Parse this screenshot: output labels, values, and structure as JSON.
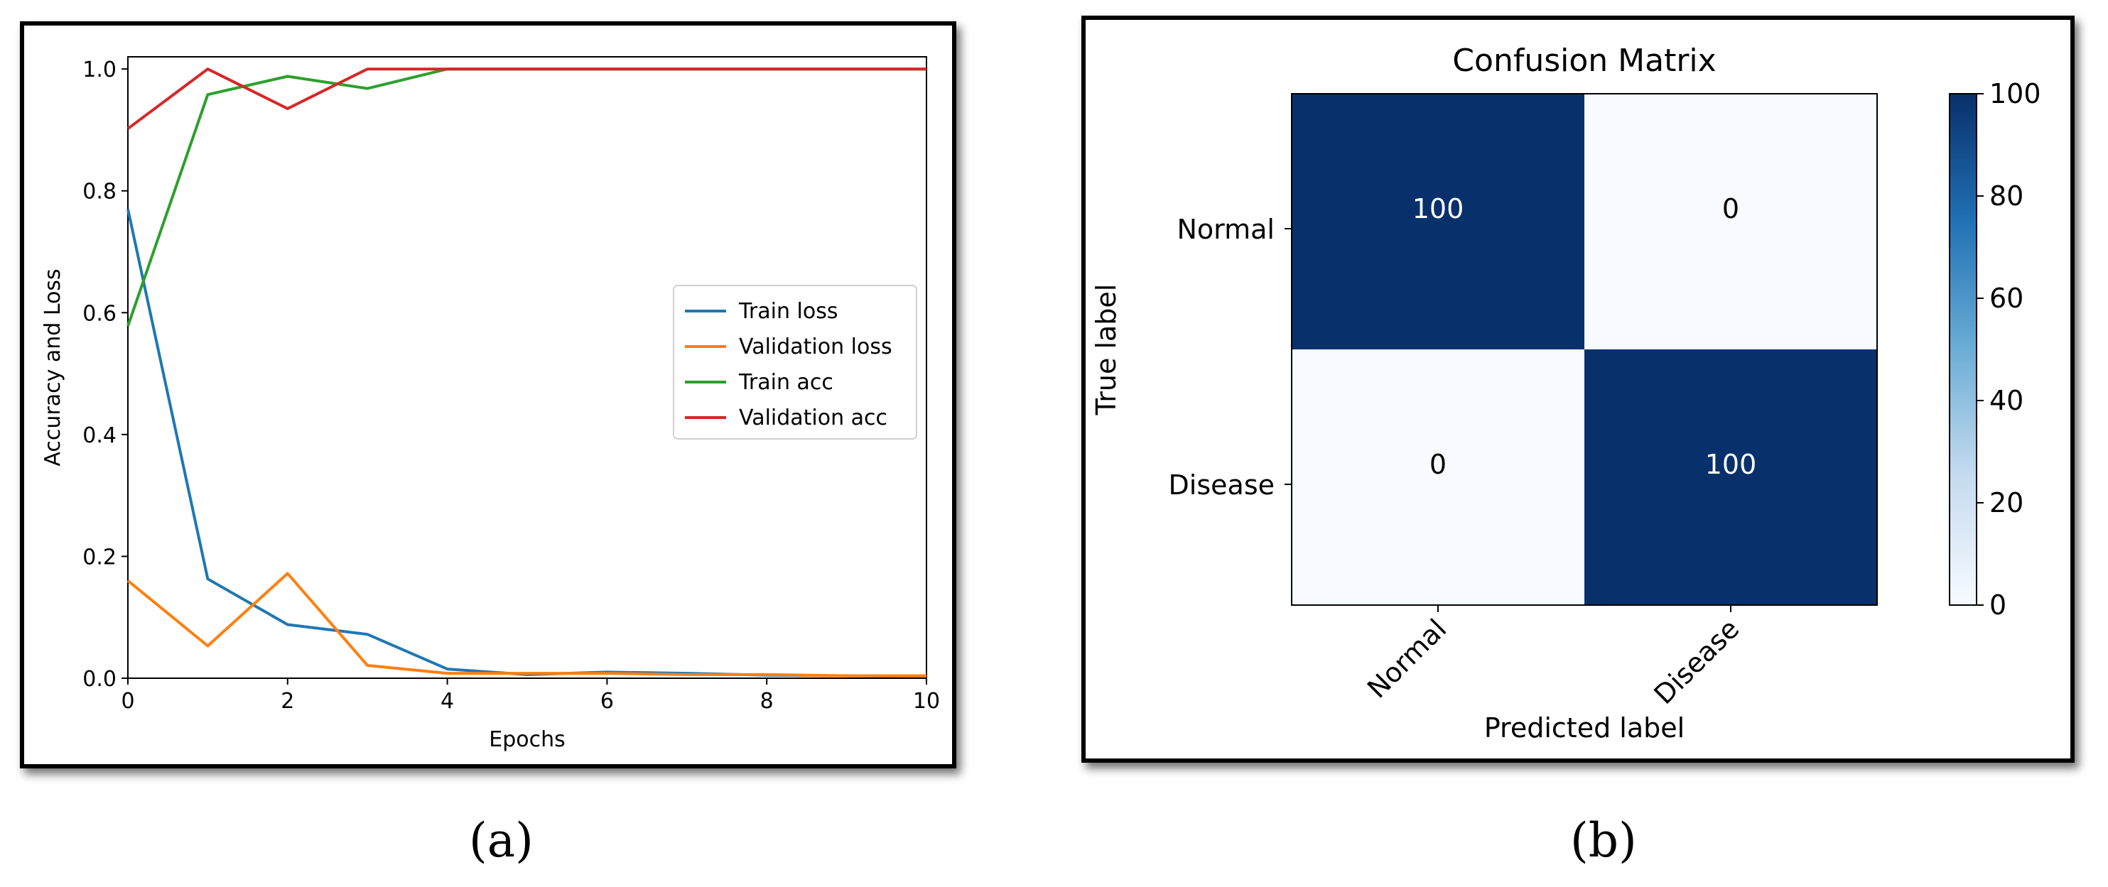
{
  "captions": {
    "a": "(a)",
    "b": "(b)"
  },
  "chart_data": [
    {
      "type": "line",
      "title": "",
      "xlabel": "Epochs",
      "ylabel": "Accuracy and Loss",
      "xlim": [
        0,
        10
      ],
      "ylim": [
        0,
        1.02
      ],
      "xticks": [
        "0",
        "2",
        "4",
        "6",
        "8",
        "10"
      ],
      "yticks": [
        "0.0",
        "0.2",
        "0.4",
        "0.6",
        "0.8",
        "1.0"
      ],
      "grid": false,
      "legend_position": "center-right",
      "x": [
        0,
        1,
        2,
        3,
        4,
        5,
        6,
        7,
        8,
        9,
        10
      ],
      "series": [
        {
          "name": "Train loss",
          "color": "#1f77b4",
          "values": [
            0.77,
            0.163,
            0.088,
            0.072,
            0.015,
            0.006,
            0.01,
            0.008,
            0.005,
            0.004,
            0.003
          ]
        },
        {
          "name": "Validation loss",
          "color": "#ff7f0e",
          "values": [
            0.16,
            0.053,
            0.172,
            0.021,
            0.008,
            0.008,
            0.008,
            0.006,
            0.006,
            0.004,
            0.004
          ]
        },
        {
          "name": "Train acc",
          "color": "#2ca02c",
          "values": [
            0.578,
            0.958,
            0.988,
            0.968,
            1.0,
            1.0,
            1.0,
            1.0,
            1.0,
            1.0,
            1.0
          ]
        },
        {
          "name": "Validation acc",
          "color": "#d62728",
          "values": [
            0.902,
            1.0,
            0.935,
            1.0,
            1.0,
            1.0,
            1.0,
            1.0,
            1.0,
            1.0,
            1.0
          ]
        }
      ]
    },
    {
      "type": "heatmap",
      "title": "Confusion Matrix",
      "xlabel": "Predicted label",
      "ylabel": "True label",
      "x_categories": [
        "Normal",
        "Disease"
      ],
      "y_categories": [
        "Normal",
        "Disease"
      ],
      "values": [
        [
          100,
          0
        ],
        [
          0,
          100
        ]
      ],
      "colorbar": {
        "min": 0,
        "max": 100,
        "ticks": [
          "0",
          "20",
          "40",
          "60",
          "80",
          "100"
        ]
      },
      "colormap": "Blues",
      "colors": {
        "high": "#08306b",
        "low": "#f7fbff"
      }
    }
  ]
}
